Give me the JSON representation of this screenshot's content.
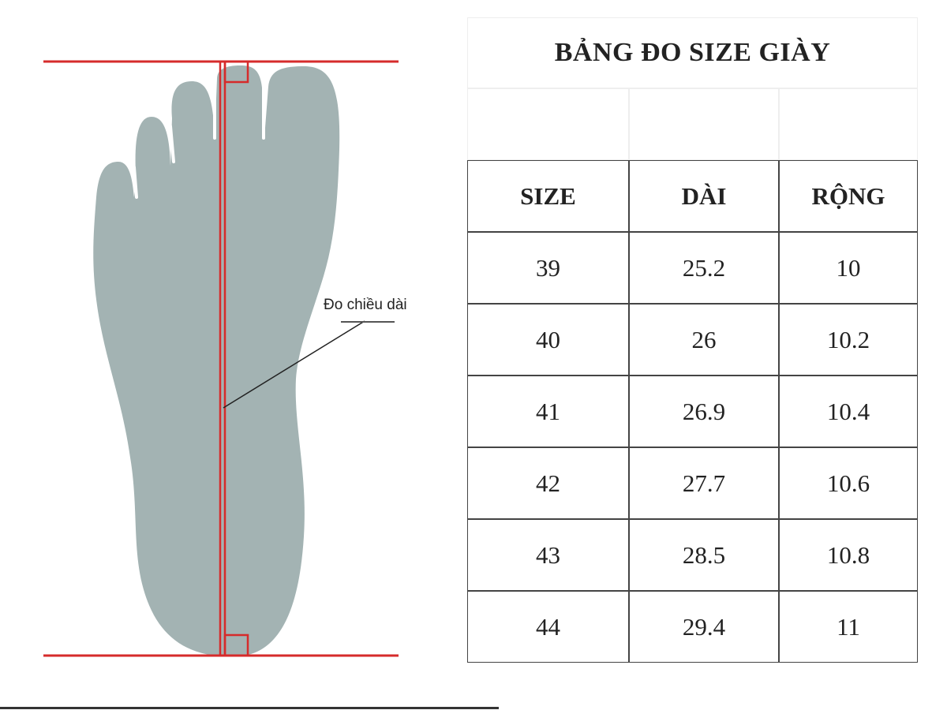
{
  "diagram": {
    "measure_label": "Đo chiều dài",
    "foot_color": "#a3b3b3",
    "line_color": "#d62b2b"
  },
  "table": {
    "title": "BẢNG ĐO SIZE GIÀY",
    "headers": [
      "SIZE",
      "DÀI",
      "RỘNG"
    ],
    "rows": [
      [
        "39",
        "25.2",
        "10"
      ],
      [
        "40",
        "26",
        "10.2"
      ],
      [
        "41",
        "26.9",
        "10.4"
      ],
      [
        "42",
        "27.7",
        "10.6"
      ],
      [
        "43",
        "28.5",
        "10.8"
      ],
      [
        "44",
        "29.4",
        "11"
      ]
    ]
  }
}
